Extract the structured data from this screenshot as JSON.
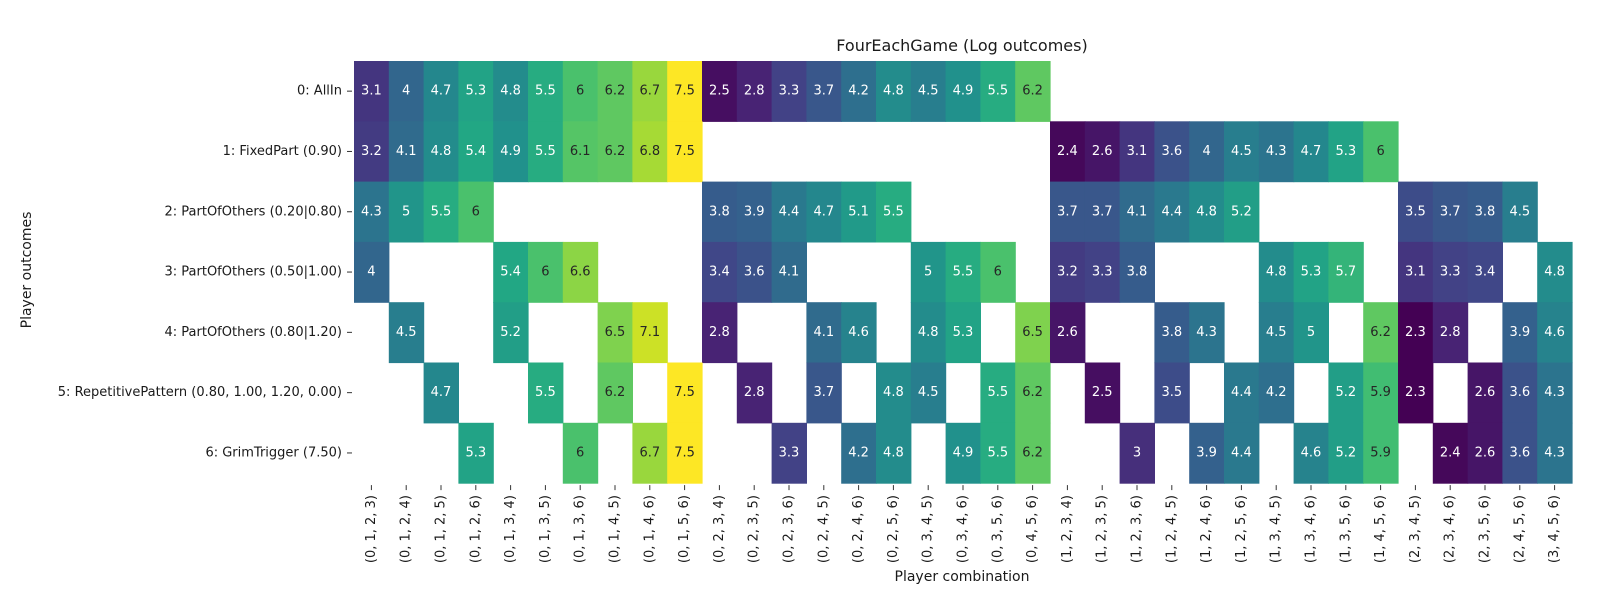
{
  "chart_data": {
    "type": "heatmap",
    "title": "FourEachGame (Log outcomes)",
    "xlabel": "Player combination",
    "ylabel": "Player outcomes",
    "colormap": "viridis",
    "value_range": [
      2.3,
      7.5
    ],
    "rows": [
      "0: AllIn",
      "1: FixedPart (0.90)",
      "2: PartOfOthers (0.20|0.80)",
      "3: PartOfOthers (0.50|1.00)",
      "4: PartOfOthers (0.80|1.20)",
      "5: RepetitivePattern (0.80, 1.00, 1.20, 0.00)",
      "6: GrimTrigger (7.50)"
    ],
    "columns": [
      "(0, 1, 2, 3)",
      "(0, 1, 2, 4)",
      "(0, 1, 2, 5)",
      "(0, 1, 2, 6)",
      "(0, 1, 3, 4)",
      "(0, 1, 3, 5)",
      "(0, 1, 3, 6)",
      "(0, 1, 4, 5)",
      "(0, 1, 4, 6)",
      "(0, 1, 5, 6)",
      "(0, 2, 3, 4)",
      "(0, 2, 3, 5)",
      "(0, 2, 3, 6)",
      "(0, 2, 4, 5)",
      "(0, 2, 4, 6)",
      "(0, 2, 5, 6)",
      "(0, 3, 4, 5)",
      "(0, 3, 4, 6)",
      "(0, 3, 5, 6)",
      "(0, 4, 5, 6)",
      "(1, 2, 3, 4)",
      "(1, 2, 3, 5)",
      "(1, 2, 3, 6)",
      "(1, 2, 4, 5)",
      "(1, 2, 4, 6)",
      "(1, 2, 5, 6)",
      "(1, 3, 4, 5)",
      "(1, 3, 4, 6)",
      "(1, 3, 5, 6)",
      "(1, 4, 5, 6)",
      "(2, 3, 4, 5)",
      "(2, 3, 4, 6)",
      "(2, 3, 5, 6)",
      "(2, 4, 5, 6)",
      "(3, 4, 5, 6)"
    ],
    "values": [
      [
        3.1,
        4,
        4.7,
        5.3,
        4.8,
        5.5,
        6,
        6.2,
        6.7,
        7.5,
        2.5,
        2.8,
        3.3,
        3.7,
        4.2,
        4.8,
        4.5,
        4.9,
        5.5,
        6.2,
        null,
        null,
        null,
        null,
        null,
        null,
        null,
        null,
        null,
        null,
        null,
        null,
        null,
        null,
        null
      ],
      [
        3.2,
        4.1,
        4.8,
        5.4,
        4.9,
        5.5,
        6.1,
        6.2,
        6.8,
        7.5,
        null,
        null,
        null,
        null,
        null,
        null,
        null,
        null,
        null,
        null,
        2.4,
        2.6,
        3.1,
        3.6,
        4,
        4.5,
        4.3,
        4.7,
        5.3,
        6,
        null,
        null,
        null,
        null,
        null
      ],
      [
        4.3,
        5,
        5.5,
        6,
        null,
        null,
        null,
        null,
        null,
        null,
        3.8,
        3.9,
        4.4,
        4.7,
        5.1,
        5.5,
        null,
        null,
        null,
        null,
        3.7,
        3.7,
        4.1,
        4.4,
        4.8,
        5.2,
        null,
        null,
        null,
        null,
        3.5,
        3.7,
        3.8,
        4.5,
        null
      ],
      [
        4,
        null,
        null,
        null,
        5.4,
        6,
        6.6,
        null,
        null,
        null,
        3.4,
        3.6,
        4.1,
        null,
        null,
        null,
        5,
        5.5,
        6,
        null,
        3.2,
        3.3,
        3.8,
        null,
        null,
        null,
        4.8,
        5.3,
        5.7,
        null,
        3.1,
        3.3,
        3.4,
        null,
        4.8
      ],
      [
        null,
        4.5,
        null,
        null,
        5.2,
        null,
        null,
        6.5,
        7.1,
        null,
        2.8,
        null,
        null,
        4.1,
        4.6,
        null,
        4.8,
        5.3,
        null,
        6.5,
        2.6,
        null,
        null,
        3.8,
        4.3,
        null,
        4.5,
        5,
        null,
        6.2,
        2.3,
        2.8,
        null,
        3.9,
        4.6
      ],
      [
        null,
        null,
        4.7,
        null,
        null,
        5.5,
        null,
        6.2,
        null,
        7.5,
        null,
        2.8,
        null,
        3.7,
        null,
        4.8,
        4.5,
        null,
        5.5,
        6.2,
        null,
        2.5,
        null,
        3.5,
        null,
        4.4,
        4.2,
        null,
        5.2,
        5.9,
        2.3,
        null,
        2.6,
        3.6,
        4.3
      ],
      [
        null,
        null,
        null,
        5.3,
        null,
        null,
        6,
        null,
        6.7,
        7.5,
        null,
        null,
        3.3,
        null,
        4.2,
        4.8,
        null,
        4.9,
        5.5,
        6.2,
        null,
        null,
        3,
        null,
        3.9,
        4.4,
        null,
        4.6,
        5.2,
        5.9,
        null,
        2.4,
        2.6,
        3.6,
        4.3
      ]
    ]
  }
}
